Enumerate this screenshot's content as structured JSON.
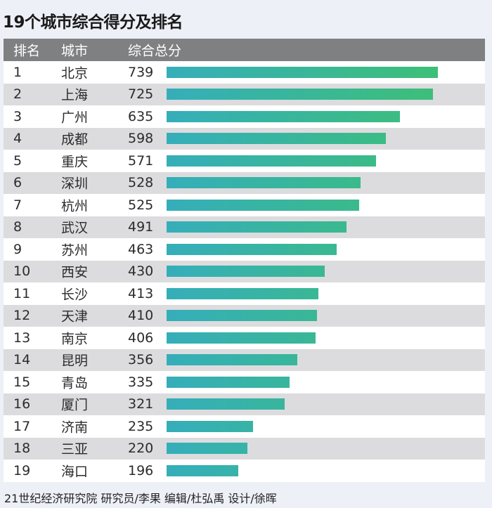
{
  "chart_data": {
    "type": "bar",
    "title": "19个城市综合得分及排名",
    "columns": [
      "排名",
      "城市",
      "综合总分"
    ],
    "ranks": [
      "1",
      "2",
      "3",
      "4",
      "5",
      "6",
      "7",
      "8",
      "9",
      "10",
      "11",
      "12",
      "13",
      "14",
      "15",
      "16",
      "17",
      "18",
      "19"
    ],
    "categories": [
      "北京",
      "上海",
      "广州",
      "成都",
      "重庆",
      "深圳",
      "杭州",
      "武汉",
      "苏州",
      "西安",
      "长沙",
      "天津",
      "南京",
      "昆明",
      "青岛",
      "厦门",
      "济南",
      "三亚",
      "海口"
    ],
    "values": [
      739,
      725,
      635,
      598,
      571,
      528,
      525,
      491,
      463,
      430,
      413,
      410,
      406,
      356,
      335,
      321,
      235,
      220,
      196
    ],
    "xlim": [
      0,
      739
    ],
    "colors": {
      "bar_start": "#35aeba",
      "bar_end": "#3dbf78",
      "header": "#7f8082",
      "row_alt": "#dcdcde"
    }
  },
  "footer": "21世纪经济研究院 研究员/李果  编辑/杜弘禹  设计/徐晖"
}
